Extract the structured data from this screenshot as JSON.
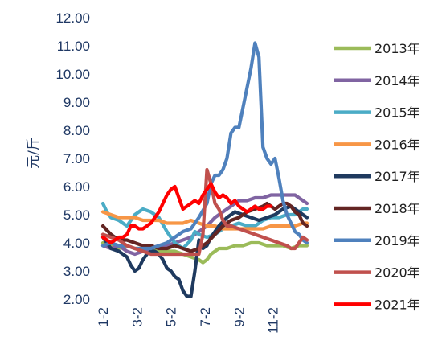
{
  "chart_data": {
    "type": "line",
    "title": "",
    "xlabel": "",
    "ylabel": "元/斤",
    "ylim": [
      2.0,
      12.0
    ],
    "yticks": [
      "2.00",
      "3.00",
      "4.00",
      "5.00",
      "6.00",
      "7.00",
      "8.00",
      "9.00",
      "10.00",
      "11.00",
      "12.00"
    ],
    "xlim": [
      1,
      52
    ],
    "xticks": [
      {
        "x": 1,
        "label": "1-2"
      },
      {
        "x": 9.5,
        "label": "3-2"
      },
      {
        "x": 18,
        "label": "5-2"
      },
      {
        "x": 26.5,
        "label": "7-2"
      },
      {
        "x": 35,
        "label": "9-2"
      },
      {
        "x": 43.5,
        "label": "11-2"
      }
    ],
    "grid": false,
    "legend_position": "right",
    "series": [
      {
        "name": "2013年",
        "color": "#9bbb59",
        "x": [
          1,
          3,
          5,
          7,
          9,
          11,
          13,
          15,
          17,
          19,
          21,
          23,
          25,
          26,
          27,
          28,
          30,
          32,
          34,
          36,
          38,
          40,
          42,
          44,
          46,
          48,
          50,
          52
        ],
        "y": [
          4.0,
          3.9,
          3.8,
          3.9,
          3.8,
          3.8,
          3.8,
          3.7,
          3.7,
          3.7,
          3.6,
          3.5,
          3.4,
          3.3,
          3.4,
          3.6,
          3.8,
          3.8,
          3.9,
          3.9,
          4.0,
          4.0,
          3.9,
          3.9,
          3.9,
          3.8,
          3.9,
          3.9
        ]
      },
      {
        "name": "2014年",
        "color": "#8064a2",
        "x": [
          1,
          3,
          5,
          7,
          9,
          11,
          13,
          15,
          17,
          19,
          21,
          23,
          25,
          27,
          29,
          31,
          33,
          35,
          37,
          39,
          41,
          43,
          45,
          47,
          49,
          50,
          51,
          52
        ],
        "y": [
          3.9,
          3.8,
          3.9,
          3.7,
          3.6,
          3.7,
          3.8,
          3.9,
          3.9,
          4.0,
          4.1,
          4.2,
          4.4,
          4.6,
          4.9,
          5.1,
          5.3,
          5.5,
          5.5,
          5.6,
          5.6,
          5.7,
          5.7,
          5.7,
          5.7,
          5.6,
          5.5,
          5.4
        ]
      },
      {
        "name": "2015年",
        "color": "#4bacc6",
        "x": [
          1,
          2,
          3,
          5,
          7,
          9,
          11,
          13,
          15,
          17,
          19,
          21,
          23,
          24,
          25,
          27,
          29,
          31,
          33,
          35,
          37,
          39,
          41,
          43,
          45,
          47,
          49,
          51,
          52
        ],
        "y": [
          5.4,
          5.1,
          4.9,
          4.8,
          4.6,
          5.0,
          5.2,
          5.1,
          4.9,
          4.4,
          4.0,
          3.8,
          4.1,
          4.4,
          4.3,
          4.2,
          4.3,
          4.5,
          4.6,
          4.7,
          4.6,
          4.6,
          4.8,
          4.9,
          4.9,
          5.0,
          5.0,
          5.2,
          5.2
        ]
      },
      {
        "name": "2016年",
        "color": "#f79646",
        "x": [
          1,
          3,
          5,
          7,
          9,
          11,
          13,
          15,
          17,
          19,
          21,
          23,
          25,
          27,
          29,
          31,
          33,
          35,
          37,
          39,
          41,
          43,
          45,
          47,
          49,
          51,
          52
        ],
        "y": [
          5.1,
          5.0,
          4.9,
          4.9,
          4.9,
          4.8,
          4.8,
          4.8,
          4.7,
          4.7,
          4.7,
          4.8,
          4.7,
          4.6,
          4.6,
          4.5,
          4.5,
          4.5,
          4.5,
          4.5,
          4.5,
          4.6,
          4.6,
          4.6,
          4.6,
          4.7,
          4.7
        ]
      },
      {
        "name": "2017年",
        "color": "#1f3a5f",
        "x": [
          1,
          3,
          5,
          7,
          8,
          9,
          10,
          11,
          12,
          13,
          14,
          15,
          16,
          17,
          18,
          19,
          20,
          21,
          22,
          23,
          24,
          25,
          26,
          27,
          28,
          30,
          32,
          34,
          36,
          38,
          40,
          42,
          44,
          46,
          48,
          50,
          52
        ],
        "y": [
          4.2,
          3.8,
          3.7,
          3.5,
          3.2,
          3.0,
          3.1,
          3.4,
          3.6,
          3.7,
          3.7,
          3.6,
          3.4,
          3.1,
          3.0,
          2.8,
          2.7,
          2.3,
          2.1,
          2.1,
          3.0,
          4.1,
          3.8,
          3.9,
          4.2,
          4.6,
          4.9,
          5.1,
          5.0,
          4.9,
          4.8,
          4.9,
          5.0,
          5.2,
          5.3,
          5.1,
          4.9
        ]
      },
      {
        "name": "2018年",
        "color": "#632523",
        "x": [
          1,
          3,
          5,
          7,
          9,
          11,
          13,
          15,
          17,
          19,
          21,
          23,
          25,
          27,
          29,
          31,
          33,
          35,
          37,
          39,
          41,
          42,
          43,
          44,
          45,
          46,
          47,
          48,
          49,
          50,
          51,
          52
        ],
        "y": [
          4.6,
          4.3,
          4.1,
          4.1,
          4.0,
          3.9,
          3.9,
          3.8,
          3.8,
          3.9,
          3.8,
          3.7,
          3.8,
          4.0,
          4.3,
          4.6,
          4.8,
          4.9,
          5.1,
          5.2,
          5.3,
          5.4,
          5.3,
          5.2,
          5.3,
          5.4,
          5.4,
          5.3,
          5.1,
          5.0,
          4.7,
          4.6
        ]
      },
      {
        "name": "2019年",
        "color": "#4f81bd",
        "x": [
          1,
          3,
          5,
          7,
          9,
          11,
          13,
          15,
          17,
          19,
          21,
          23,
          25,
          27,
          28,
          29,
          30,
          31,
          32,
          33,
          34,
          35,
          36,
          37,
          38,
          39,
          40,
          41,
          42,
          43,
          44,
          45,
          46,
          47,
          48,
          49,
          50,
          51,
          52
        ],
        "y": [
          3.9,
          4.0,
          3.9,
          3.9,
          3.8,
          3.8,
          3.8,
          3.9,
          4.0,
          4.2,
          4.4,
          4.5,
          4.9,
          5.4,
          6.1,
          6.4,
          6.4,
          6.6,
          7.0,
          7.9,
          8.1,
          8.1,
          8.8,
          9.5,
          10.2,
          11.1,
          10.6,
          7.4,
          7.0,
          6.8,
          7.0,
          6.3,
          5.5,
          5.0,
          4.7,
          4.4,
          4.3,
          4.1,
          4.0
        ]
      },
      {
        "name": "2020年",
        "color": "#c0504d",
        "x": [
          1,
          3,
          5,
          7,
          9,
          11,
          13,
          15,
          17,
          19,
          21,
          23,
          25,
          26,
          27,
          28,
          29,
          30,
          31,
          32,
          33,
          35,
          37,
          39,
          41,
          43,
          45,
          47,
          48,
          49,
          50,
          51,
          52
        ],
        "y": [
          4.3,
          4.2,
          4.1,
          3.9,
          3.8,
          3.7,
          3.6,
          3.6,
          3.6,
          3.6,
          3.6,
          3.6,
          3.6,
          4.3,
          6.6,
          6.1,
          5.4,
          5.2,
          4.8,
          4.6,
          4.6,
          4.5,
          4.4,
          4.3,
          4.2,
          4.1,
          4.0,
          3.9,
          3.8,
          3.8,
          4.0,
          4.2,
          4.1
        ]
      },
      {
        "name": "2021年",
        "color": "#ff0000",
        "x": [
          1,
          2,
          3,
          4,
          5,
          6,
          7,
          8,
          9,
          10,
          11,
          12,
          13,
          14,
          15,
          16,
          17,
          18,
          19,
          20,
          21,
          22,
          23,
          24,
          25,
          26,
          27,
          28,
          29,
          30,
          31,
          32,
          33,
          34,
          35,
          36,
          37,
          38,
          39,
          40,
          41,
          42,
          43
        ],
        "y": [
          4.2,
          4.1,
          4.0,
          4.1,
          4.2,
          4.2,
          4.3,
          4.6,
          4.6,
          4.5,
          4.5,
          4.6,
          4.7,
          4.9,
          5.1,
          5.4,
          5.7,
          5.9,
          6.0,
          5.6,
          5.2,
          5.3,
          5.4,
          5.5,
          5.4,
          5.7,
          5.9,
          6.1,
          5.8,
          5.6,
          5.7,
          5.6,
          5.4,
          5.5,
          5.3,
          5.2,
          5.1,
          5.2,
          5.3,
          5.2,
          5.2,
          5.3,
          5.3
        ]
      }
    ]
  }
}
